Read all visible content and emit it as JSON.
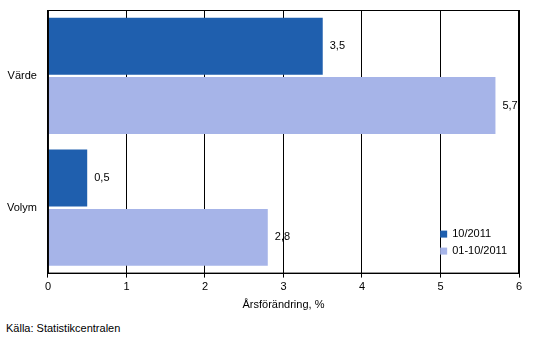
{
  "chart_data": {
    "type": "bar",
    "orientation": "horizontal",
    "categories": [
      "Värde",
      "Volym"
    ],
    "series": [
      {
        "name": "10/2011",
        "color": "#1f5fae",
        "values": [
          3.5,
          0.5
        ],
        "value_labels": [
          "3,5",
          "0,5"
        ]
      },
      {
        "name": "01-10/2011",
        "color": "#a6b4e8",
        "values": [
          5.7,
          2.8
        ],
        "value_labels": [
          "5,7",
          "2,8"
        ]
      }
    ],
    "x_label": "Årsförändring, %",
    "source": "Källa: Statistikcentralen",
    "xlim": [
      0,
      6
    ],
    "xticks": [
      0,
      1,
      2,
      3,
      4,
      5,
      6
    ],
    "grid": true,
    "legend": "lower right",
    "data_labels": true
  }
}
